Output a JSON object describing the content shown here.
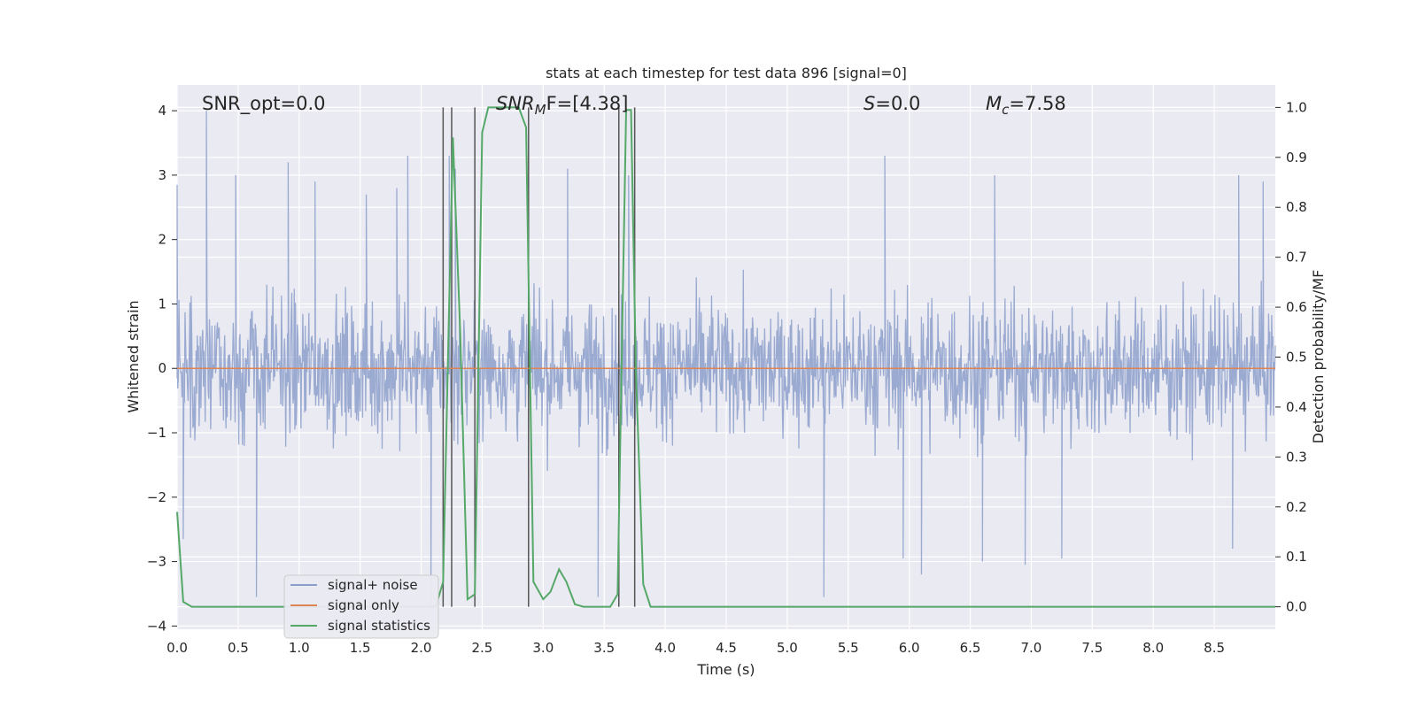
{
  "chart_data": {
    "type": "line",
    "title": "stats at each timestep for test data 896 [signal=0]",
    "xlabel": "Time (s)",
    "ylabel": "Whitened strain",
    "y2label": "Detection probability/MF",
    "xlim": [
      0,
      9.0
    ],
    "ylim": [
      -4.05,
      4.4
    ],
    "y2lim": [
      -0.045,
      1.045
    ],
    "xticks": [
      0.0,
      0.5,
      1.0,
      1.5,
      2.0,
      2.5,
      3.0,
      3.5,
      4.0,
      4.5,
      5.0,
      5.5,
      6.0,
      6.5,
      7.0,
      7.5,
      8.0,
      8.5
    ],
    "xtick_labels": [
      "0.0",
      "0.5",
      "1.0",
      "1.5",
      "2.0",
      "2.5",
      "3.0",
      "3.5",
      "4.0",
      "4.5",
      "5.0",
      "5.5",
      "6.0",
      "6.5",
      "7.0",
      "7.5",
      "8.0",
      "8.5"
    ],
    "yticks": [
      -4,
      -3,
      -2,
      -1,
      0,
      1,
      2,
      3,
      4
    ],
    "ytick_labels": [
      "−4",
      "−3",
      "−2",
      "−1",
      "0",
      "1",
      "2",
      "3",
      "4"
    ],
    "y2ticks": [
      0.0,
      0.1,
      0.2,
      0.3,
      0.4,
      0.5,
      0.6,
      0.7,
      0.8,
      0.9,
      1.0
    ],
    "y2tick_labels": [
      "0.0",
      "0.1",
      "0.2",
      "0.3",
      "0.4",
      "0.5",
      "0.6",
      "0.7",
      "0.8",
      "0.9",
      "1.0"
    ],
    "grid": true,
    "legend_position": "lower-left",
    "annotations": {
      "snr_opt": "SNR_opt=0.0",
      "snr_mf_sym": "SNR",
      "snr_mf_sub": "M",
      "snr_mf_rest": "F=[4.38]",
      "s_sym": "S",
      "s_rest": "=0.0",
      "mc_sym": "M",
      "mc_sub": "c",
      "mc_rest": "=7.58"
    },
    "vertical_lines": [
      2.18,
      2.25,
      2.44,
      2.88,
      3.62,
      3.75
    ],
    "series": [
      {
        "name": "signal+ noise",
        "color": "#8c9fcb",
        "axis": "left",
        "style": "noise",
        "x_range": [
          0,
          9.0
        ],
        "peaks": [
          {
            "x": 0.0,
            "y": 2.85
          },
          {
            "x": 0.24,
            "y": 4.0
          },
          {
            "x": 0.48,
            "y": 3.0
          },
          {
            "x": 0.91,
            "y": 3.2
          },
          {
            "x": 1.13,
            "y": 2.9
          },
          {
            "x": 1.55,
            "y": 2.7
          },
          {
            "x": 1.8,
            "y": 2.8
          },
          {
            "x": 1.89,
            "y": 3.3
          },
          {
            "x": 2.23,
            "y": 3.3
          },
          {
            "x": 2.28,
            "y": 3.1
          },
          {
            "x": 3.2,
            "y": 3.1
          },
          {
            "x": 3.7,
            "y": 3.0
          },
          {
            "x": 5.8,
            "y": 3.3
          },
          {
            "x": 6.7,
            "y": 3.0
          },
          {
            "x": 8.7,
            "y": 3.0
          },
          {
            "x": 8.9,
            "y": 2.9
          },
          {
            "x": 0.05,
            "y": -2.65
          },
          {
            "x": 0.65,
            "y": -3.55
          },
          {
            "x": 2.08,
            "y": -3.7
          },
          {
            "x": 3.45,
            "y": -3.55
          },
          {
            "x": 5.3,
            "y": -3.55
          },
          {
            "x": 5.95,
            "y": -2.95
          },
          {
            "x": 6.1,
            "y": -3.2
          },
          {
            "x": 6.6,
            "y": -3.0
          },
          {
            "x": 6.95,
            "y": -3.05
          },
          {
            "x": 7.25,
            "y": -2.95
          },
          {
            "x": 8.65,
            "y": -2.8
          }
        ]
      },
      {
        "name": "signal only",
        "color": "#dd8452",
        "axis": "left",
        "x": [
          0,
          9.0
        ],
        "y": [
          0,
          0
        ]
      },
      {
        "name": "signal statistics",
        "color": "#55a868",
        "axis": "right",
        "x": [
          0.0,
          0.05,
          0.12,
          0.3,
          1.0,
          2.0,
          2.12,
          2.18,
          2.22,
          2.26,
          2.32,
          2.38,
          2.44,
          2.5,
          2.55,
          2.6,
          2.7,
          2.8,
          2.86,
          2.92,
          3.0,
          3.06,
          3.13,
          3.19,
          3.26,
          3.33,
          3.4,
          3.55,
          3.61,
          3.64,
          3.68,
          3.72,
          3.76,
          3.82,
          3.88,
          4.0,
          5.0,
          6.0,
          7.0,
          8.0,
          9.0
        ],
        "y": [
          0.19,
          0.01,
          0.0,
          0.0,
          0.0,
          0.0,
          0.0,
          0.05,
          0.5,
          0.94,
          0.55,
          0.015,
          0.025,
          0.95,
          1.0,
          1.0,
          1.0,
          1.0,
          0.96,
          0.05,
          0.015,
          0.03,
          0.075,
          0.05,
          0.005,
          0.0,
          0.0,
          0.0,
          0.025,
          0.45,
          0.995,
          0.995,
          0.47,
          0.045,
          0.0,
          0.0,
          0.0,
          0.0,
          0.0,
          0.0,
          0.0
        ]
      }
    ]
  }
}
